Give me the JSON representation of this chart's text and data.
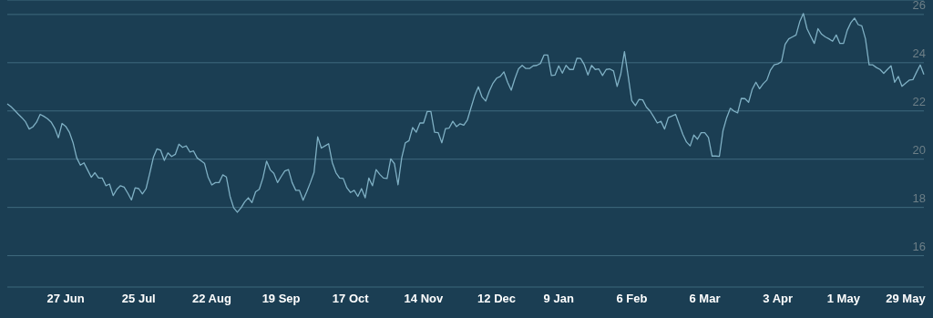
{
  "chart_data": {
    "type": "line",
    "categories": [
      null,
      null,
      null,
      null,
      null,
      null,
      null,
      null,
      null,
      null,
      null,
      null,
      null,
      null,
      null,
      null,
      "27 Jun",
      null,
      null,
      null,
      null,
      null,
      null,
      null,
      null,
      null,
      null,
      null,
      null,
      null,
      null,
      null,
      null,
      null,
      null,
      null,
      "25 Jul",
      null,
      null,
      null,
      null,
      null,
      null,
      null,
      null,
      null,
      null,
      null,
      null,
      null,
      null,
      null,
      null,
      null,
      null,
      null,
      "22 Aug",
      null,
      null,
      null,
      null,
      null,
      null,
      null,
      null,
      null,
      null,
      null,
      null,
      null,
      null,
      null,
      null,
      null,
      null,
      "19 Sep",
      null,
      null,
      null,
      null,
      null,
      null,
      null,
      null,
      null,
      null,
      null,
      null,
      null,
      null,
      null,
      null,
      null,
      null,
      "17 Oct",
      null,
      null,
      null,
      null,
      null,
      null,
      null,
      null,
      null,
      null,
      null,
      null,
      null,
      null,
      null,
      null,
      null,
      null,
      null,
      "14 Nov",
      null,
      null,
      null,
      null,
      null,
      null,
      null,
      null,
      null,
      null,
      null,
      null,
      null,
      null,
      null,
      null,
      null,
      null,
      null,
      "12 Dec",
      null,
      null,
      null,
      null,
      null,
      null,
      null,
      null,
      null,
      null,
      null,
      null,
      null,
      null,
      null,
      null,
      "9 Jan",
      null,
      null,
      null,
      null,
      null,
      null,
      null,
      null,
      null,
      null,
      null,
      null,
      null,
      null,
      null,
      null,
      null,
      null,
      null,
      "6 Feb",
      null,
      null,
      null,
      null,
      null,
      null,
      null,
      null,
      null,
      null,
      null,
      null,
      null,
      null,
      null,
      null,
      null,
      null,
      null,
      "6 Mar",
      null,
      null,
      null,
      null,
      null,
      null,
      null,
      null,
      null,
      null,
      null,
      null,
      null,
      null,
      null,
      null,
      null,
      null,
      null,
      "3 Apr",
      null,
      null,
      null,
      null,
      null,
      null,
      null,
      null,
      null,
      null,
      null,
      null,
      null,
      null,
      null,
      null,
      null,
      "1 May",
      null,
      null,
      null,
      null,
      null,
      null,
      null,
      null,
      null,
      null,
      null,
      null,
      null,
      null,
      null,
      null,
      "29 May",
      null,
      null,
      null,
      null,
      null
    ],
    "series": [
      {
        "color": "#7fb0c4",
        "values": [
          22.29,
          22.18,
          22.03,
          21.87,
          21.72,
          21.55,
          21.25,
          21.34,
          21.53,
          21.86,
          21.78,
          21.68,
          21.54,
          21.28,
          20.89,
          21.48,
          21.36,
          21.12,
          20.69,
          20.06,
          19.75,
          19.85,
          19.55,
          19.25,
          19.44,
          19.22,
          19.22,
          18.9,
          18.97,
          18.49,
          18.75,
          18.9,
          18.84,
          18.59,
          18.31,
          18.81,
          18.78,
          18.56,
          18.78,
          19.41,
          20.07,
          20.43,
          20.37,
          19.95,
          20.26,
          20.11,
          20.2,
          20.62,
          20.49,
          20.55,
          20.3,
          20.34,
          20.05,
          19.94,
          19.83,
          19.25,
          18.93,
          19.03,
          19.03,
          19.35,
          19.26,
          18.46,
          17.98,
          17.8,
          17.98,
          18.23,
          18.4,
          18.2,
          18.65,
          18.75,
          19.22,
          19.92,
          19.56,
          19.41,
          19.03,
          19.28,
          19.51,
          19.57,
          19.03,
          18.71,
          18.71,
          18.3,
          18.65,
          19.03,
          19.45,
          20.93,
          20.46,
          20.55,
          20.64,
          19.86,
          19.44,
          19.22,
          19.2,
          18.81,
          18.62,
          18.71,
          18.46,
          18.78,
          18.4,
          19.22,
          18.9,
          19.57,
          19.37,
          19.22,
          19.2,
          20.01,
          19.82,
          18.94,
          20.05,
          20.68,
          20.77,
          21.31,
          21.12,
          21.5,
          21.5,
          21.98,
          21.98,
          21.12,
          21.1,
          20.68,
          21.27,
          21.29,
          21.57,
          21.35,
          21.47,
          21.41,
          21.63,
          22.14,
          22.64,
          23.0,
          22.58,
          22.41,
          22.82,
          23.15,
          23.36,
          23.43,
          23.62,
          23.19,
          22.86,
          23.34,
          23.75,
          23.89,
          23.76,
          23.76,
          23.87,
          23.89,
          23.97,
          24.32,
          24.32,
          23.47,
          23.49,
          23.87,
          23.57,
          23.89,
          23.72,
          23.72,
          24.19,
          24.18,
          23.92,
          23.49,
          23.89,
          23.72,
          23.74,
          23.47,
          23.72,
          23.74,
          23.66,
          23.02,
          23.53,
          24.46,
          23.47,
          22.43,
          22.22,
          22.48,
          22.46,
          22.16,
          22.0,
          21.76,
          21.5,
          21.57,
          21.25,
          21.72,
          21.79,
          21.86,
          21.44,
          21.03,
          20.71,
          20.55,
          21.0,
          20.83,
          21.1,
          21.1,
          20.9,
          20.13,
          20.13,
          20.12,
          21.19,
          21.72,
          22.11,
          21.99,
          21.92,
          22.52,
          22.51,
          22.36,
          22.9,
          23.19,
          22.92,
          23.13,
          23.28,
          23.7,
          23.91,
          23.95,
          24.04,
          24.76,
          24.99,
          25.07,
          25.15,
          25.7,
          26.04,
          25.41,
          25.1,
          24.8,
          25.41,
          25.18,
          25.07,
          24.99,
          24.89,
          25.15,
          24.8,
          24.8,
          25.34,
          25.66,
          25.85,
          25.58,
          25.53,
          24.99,
          23.91,
          23.91,
          23.8,
          23.72,
          23.56,
          23.72,
          23.87,
          23.19,
          23.43,
          23.02,
          23.15,
          23.28,
          23.3,
          23.61,
          23.91,
          23.51
        ]
      }
    ],
    "ylim": [
      14.7,
      26.6
    ],
    "yticks": [
      16,
      18,
      20,
      22,
      24,
      26
    ],
    "grid": "y"
  }
}
